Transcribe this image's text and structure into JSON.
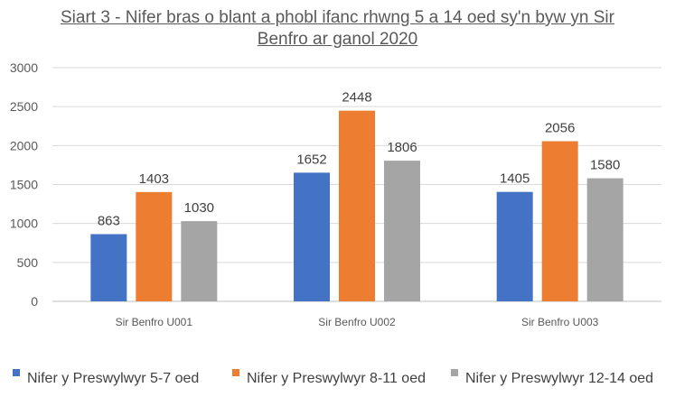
{
  "chart_data": {
    "type": "bar",
    "title_lines": [
      "Siart 3 - Nifer bras o blant a phobl ifanc rhwng 5 a 14 oed sy'n byw yn Sir",
      "Benfro ar ganol 2020"
    ],
    "categories": [
      "Sir Benfro U001",
      "Sir Benfro U002",
      "Sir Benfro U003"
    ],
    "series": [
      {
        "name": "Nifer y Preswylwyr 5-7 oed",
        "values": [
          863,
          1652,
          1405
        ],
        "color": "#4472C4"
      },
      {
        "name": "Nifer y Preswylwyr 8-11 oed",
        "values": [
          1403,
          2448,
          2056
        ],
        "color": "#ED7D31"
      },
      {
        "name": "Nifer y Preswylwyr 12-14 oed",
        "values": [
          1030,
          1806,
          1580
        ],
        "color": "#A5A5A5"
      }
    ],
    "ylim": [
      0,
      3000
    ],
    "yticks": [
      0,
      500,
      1000,
      1500,
      2000,
      2500,
      3000
    ],
    "grid": true,
    "gridColor": "#D9D9D9",
    "legend_position": "bottom"
  }
}
